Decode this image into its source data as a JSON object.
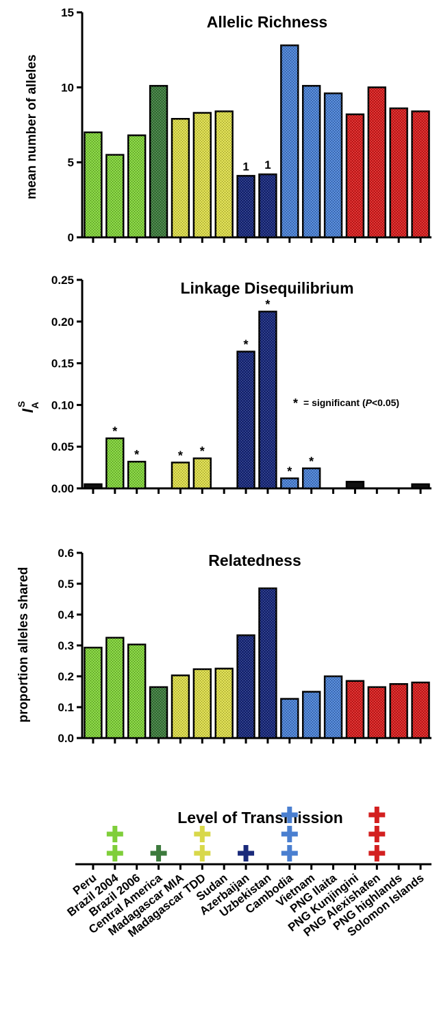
{
  "categories": [
    "Peru",
    "Brazil 2004",
    "Brazil 2006",
    "Central America",
    "Madagascar MIA",
    "Madagascar TDD",
    "Sudan",
    "Azerbaijan",
    "Uzbekistan",
    "Cambodia",
    "Vietnam",
    "PNG Ilaita",
    "PNG Kunjingini",
    "PNG Alexishafen",
    "PNG highlands",
    "Solomon Islands"
  ],
  "colors": {
    "lime": "#7fce3a",
    "darkgreen": "#3d7a3d",
    "yellow": "#d8d84a",
    "navy": "#1a2a7a",
    "blue": "#4a7fd0",
    "red": "#d32020",
    "black": "#111111"
  },
  "bar_colors": [
    "lime",
    "lime",
    "lime",
    "darkgreen",
    "yellow",
    "yellow",
    "yellow",
    "navy",
    "navy",
    "blue",
    "blue",
    "blue",
    "red",
    "red",
    "red",
    "red"
  ],
  "chart_data": [
    {
      "type": "bar",
      "title": "Allelic Richness",
      "ylabel": "mean number of alleles",
      "ylim": [
        0,
        15
      ],
      "yticks": [
        "0",
        "5",
        "10",
        "15"
      ],
      "values": [
        7.0,
        5.5,
        6.8,
        10.1,
        7.9,
        8.3,
        8.4,
        4.1,
        4.2,
        12.8,
        10.1,
        9.6,
        8.2,
        10.0,
        8.6,
        8.4
      ],
      "labels": [
        "",
        "",
        "",
        "",
        "",
        "",
        "",
        "1",
        "1",
        "",
        "",
        "",
        "",
        "",
        "",
        ""
      ]
    },
    {
      "type": "bar",
      "title": "Linkage Disequilibrium",
      "ylabel": "I",
      "ylabel_sup": "S",
      "ylabel_sub": "A",
      "ylim": [
        0,
        0.25
      ],
      "yticks": [
        "0.00",
        "0.05",
        "0.10",
        "0.15",
        "0.20",
        "0.25"
      ],
      "values": [
        0.005,
        0.06,
        0.032,
        0.0,
        0.031,
        0.036,
        0.0,
        0.164,
        0.212,
        0.012,
        0.024,
        0.0,
        0.008,
        0.0,
        0.0,
        0.005
      ],
      "value_colors": [
        "black",
        "lime",
        "lime",
        "darkgreen",
        "yellow",
        "yellow",
        "yellow",
        "navy",
        "navy",
        "blue",
        "blue",
        "blue",
        "black",
        "red",
        "red",
        "black"
      ],
      "labels": [
        "",
        "*",
        "*",
        "",
        "*",
        "*",
        "",
        "*",
        "*",
        "*",
        "*",
        "",
        "",
        "",
        "",
        ""
      ],
      "annotation": {
        "star": "*",
        "prefix": "= significant (",
        "italic": "P",
        "suffix": "<0.05)"
      }
    },
    {
      "type": "bar",
      "title": "Relatedness",
      "ylabel": "proportion alleles shared",
      "ylim": [
        0,
        0.6
      ],
      "yticks": [
        "0.0",
        "0.1",
        "0.2",
        "0.3",
        "0.4",
        "0.5",
        "0.6"
      ],
      "values": [
        0.293,
        0.325,
        0.303,
        0.165,
        0.203,
        0.223,
        0.225,
        0.333,
        0.485,
        0.127,
        0.15,
        0.2,
        0.185,
        0.165,
        0.175,
        0.18
      ]
    }
  ],
  "transmission": {
    "title": "Level of Transmission",
    "levels": [
      0,
      2,
      0,
      1,
      0,
      2,
      0,
      1,
      0,
      3,
      0,
      0,
      0,
      3,
      0,
      0
    ],
    "plus_colors": [
      "lime",
      "lime",
      "lime",
      "darkgreen",
      "yellow",
      "yellow",
      "yellow",
      "navy",
      "navy",
      "blue",
      "blue",
      "blue",
      "red",
      "red",
      "red",
      "red"
    ]
  }
}
